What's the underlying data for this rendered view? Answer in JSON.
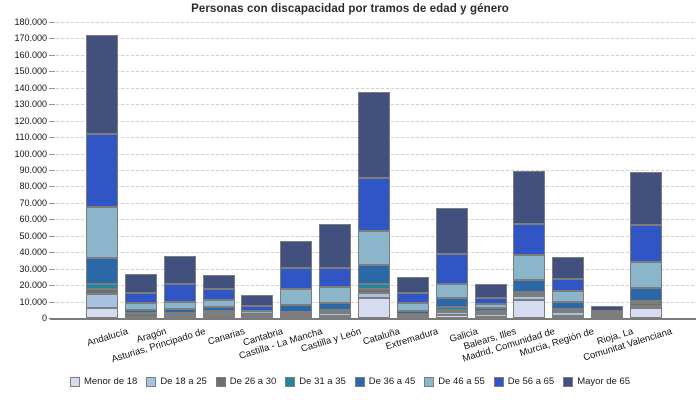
{
  "title": "Personas con discapacidad por tramos de edad y género",
  "chart_data": {
    "type": "bar",
    "stacked": true,
    "title": "Personas con discapacidad por tramos de edad y género",
    "xlabel": "",
    "ylabel": "",
    "ylim": [
      0,
      180000
    ],
    "ytick_step": 10000,
    "ytick_labels": [
      "0",
      "10.000",
      "20.000",
      "30.000",
      "40.000",
      "50.000",
      "60.000",
      "70.000",
      "80.000",
      "90.000",
      "100.000",
      "110.000",
      "120.000",
      "130.000",
      "140.000",
      "150.000",
      "160.000",
      "170.000",
      "180.000"
    ],
    "grid": "horizontal-dashed",
    "legend_position": "bottom",
    "categories": [
      "Andalucía",
      "Aragón",
      "Asturias, Principado de",
      "Canarias",
      "Cantabria",
      "Castilla - La Mancha",
      "Castilla y León",
      "Cataluña",
      "Extremadura",
      "Galicia",
      "Balears, Illes",
      "Madrid, Comunidad de",
      "Murcia, Región de",
      "Rioja, La",
      "Comunitat Valenciana"
    ],
    "series": [
      {
        "name": "Menor de 18",
        "color": "#d6dcef",
        "values": [
          5900,
          200,
          900,
          1400,
          400,
          800,
          1200,
          11900,
          500,
          1900,
          800,
          10900,
          1200,
          200,
          5900
        ]
      },
      {
        "name": "De 18 a 25",
        "color": "#a8c2e2",
        "values": [
          8700,
          400,
          800,
          1200,
          500,
          800,
          1700,
          3100,
          700,
          1600,
          1500,
          2700,
          2200,
          300,
          1600
        ]
      },
      {
        "name": "De 26 a 30",
        "color": "#6f6f6f",
        "values": [
          2800,
          1800,
          600,
          700,
          400,
          1200,
          1000,
          2400,
          800,
          1400,
          1500,
          800,
          1500,
          300,
          1400
        ]
      },
      {
        "name": "De 31 a 35",
        "color": "#1d87a0",
        "values": [
          3500,
          500,
          600,
          800,
          300,
          600,
          1000,
          3000,
          500,
          1600,
          500,
          1600,
          500,
          200,
          1400
        ]
      },
      {
        "name": "De 36 a 45",
        "color": "#2a68a8",
        "values": [
          15400,
          2000,
          2400,
          2400,
          600,
          4500,
          4400,
          11600,
          2000,
          5500,
          1500,
          7100,
          4400,
          600,
          7800
        ]
      },
      {
        "name": "De 46 a 55",
        "color": "#8ab5cb",
        "values": [
          31200,
          4200,
          4600,
          4400,
          2100,
          9500,
          9400,
          20800,
          4800,
          8500,
          2600,
          15200,
          6500,
          1300,
          15800
        ]
      },
      {
        "name": "De 56 a 65",
        "color": "#3056c6",
        "values": [
          44200,
          6100,
          10600,
          6700,
          3200,
          12800,
          11900,
          32400,
          5700,
          18200,
          3500,
          18800,
          7700,
          1600,
          22600
        ]
      },
      {
        "name": "Mayor de 65",
        "color": "#42507e",
        "values": [
          60400,
          11500,
          17200,
          8700,
          6500,
          16600,
          26500,
          52300,
          9700,
          28000,
          8500,
          32500,
          13200,
          2700,
          32500
        ]
      }
    ]
  },
  "style_colors": {
    "grid": "#cfcfcf",
    "axis": "#7a7a7a",
    "segment_border": "#7d7d7d",
    "text": "#111111"
  }
}
